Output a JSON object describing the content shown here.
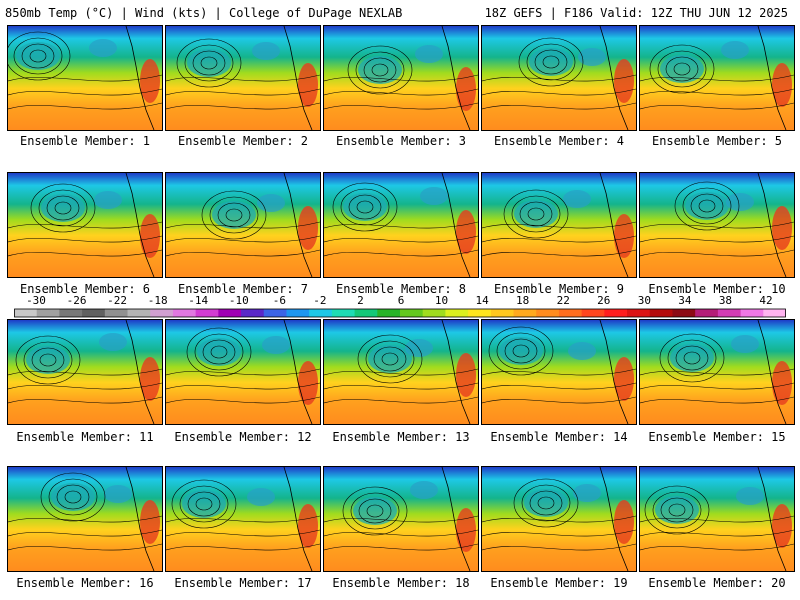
{
  "header": {
    "left": "850mb Temp (°C) | Wind (kts) | College of DuPage NEXLAB",
    "right": "18Z GEFS | F186 Valid: 12Z THU JUN 12 2025"
  },
  "colorbar": {
    "tick_labels": [
      "-30",
      "-26",
      "-22",
      "-18",
      "-14",
      "-10",
      "-6",
      "-2",
      "2",
      "6",
      "10",
      "14",
      "18",
      "22",
      "26",
      "30",
      "34",
      "38",
      "42"
    ],
    "colors": [
      "#c8c8c8",
      "#a0a0a0",
      "#787878",
      "#606060",
      "#909090",
      "#b4b4b4",
      "#d2a0d2",
      "#e178e1",
      "#d23cd2",
      "#a000b4",
      "#5a28c8",
      "#3c64e6",
      "#1e96f0",
      "#1ec8e6",
      "#1edcb4",
      "#14c878",
      "#28b428",
      "#64c81e",
      "#a0dc1e",
      "#dcf01e",
      "#ffe61e",
      "#ffc81e",
      "#ffaa1e",
      "#ff8c1e",
      "#ff6e1e",
      "#ff461e",
      "#ff1e1e",
      "#dc1414",
      "#b40a0a",
      "#8c0a14",
      "#b41e78",
      "#d23cb4",
      "#f078e6",
      "#ffb4f0"
    ]
  },
  "panels": [
    {
      "label": "Ensemble Member: 1"
    },
    {
      "label": "Ensemble Member: 2"
    },
    {
      "label": "Ensemble Member: 3"
    },
    {
      "label": "Ensemble Member: 4"
    },
    {
      "label": "Ensemble Member: 5"
    },
    {
      "label": "Ensemble Member: 6"
    },
    {
      "label": "Ensemble Member: 7"
    },
    {
      "label": "Ensemble Member: 8"
    },
    {
      "label": "Ensemble Member: 9"
    },
    {
      "label": "Ensemble Member: 10"
    },
    {
      "label": "Ensemble Member: 11"
    },
    {
      "label": "Ensemble Member: 12"
    },
    {
      "label": "Ensemble Member: 13"
    },
    {
      "label": "Ensemble Member: 14"
    },
    {
      "label": "Ensemble Member: 15"
    },
    {
      "label": "Ensemble Member: 16"
    },
    {
      "label": "Ensemble Member: 17"
    },
    {
      "label": "Ensemble Member: 18"
    },
    {
      "label": "Ensemble Member: 19"
    },
    {
      "label": "Ensemble Member: 20"
    }
  ]
}
